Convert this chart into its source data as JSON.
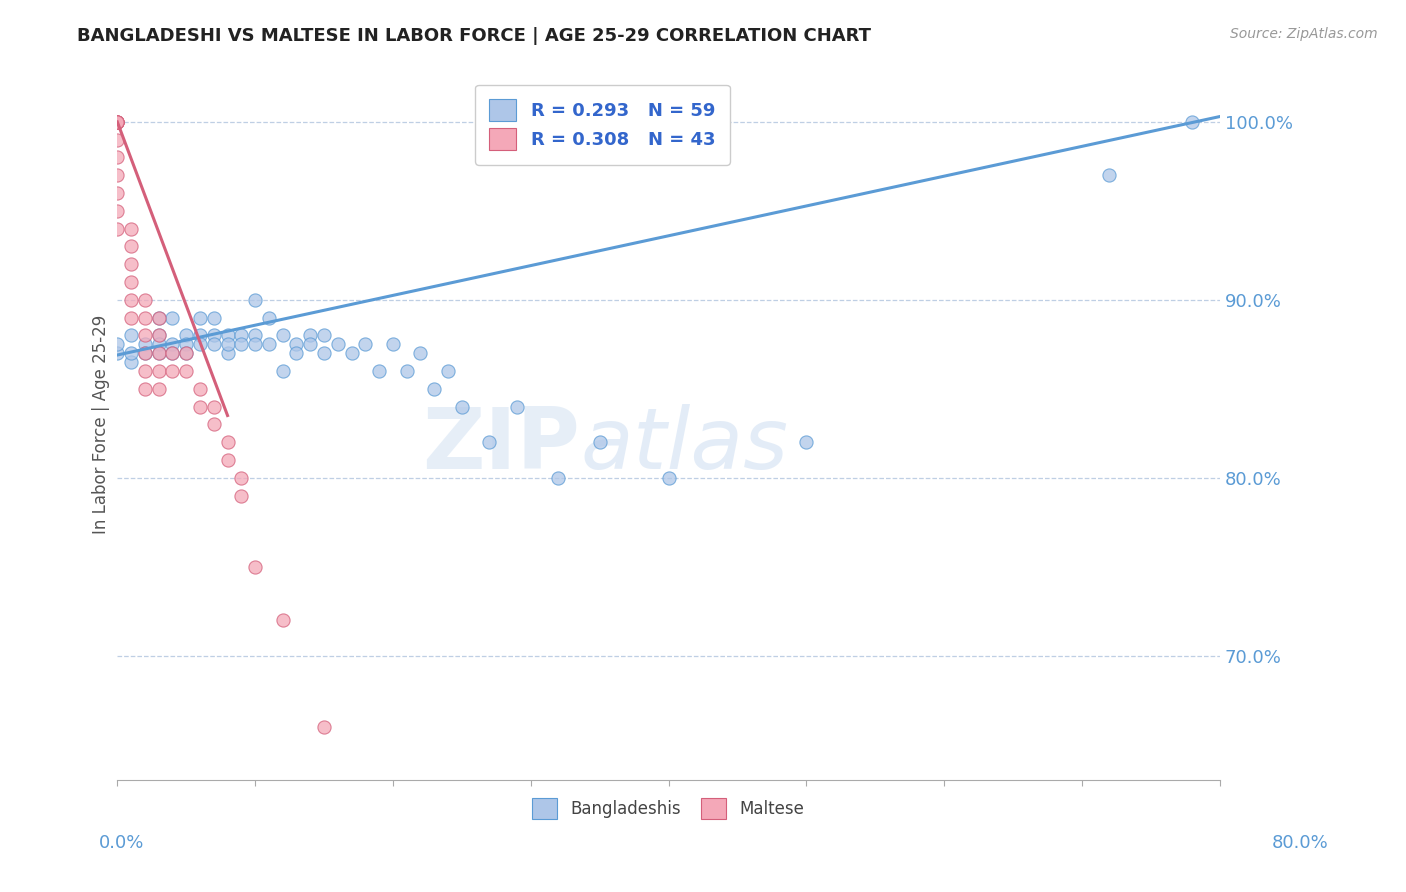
{
  "title": "BANGLADESHI VS MALTESE IN LABOR FORCE | AGE 25-29 CORRELATION CHART",
  "source": "Source: ZipAtlas.com",
  "ylabel_label": "In Labor Force | Age 25-29",
  "xlim": [
    0.0,
    0.8
  ],
  "ylim": [
    0.63,
    1.03
  ],
  "R_bangladeshi": 0.293,
  "N_bangladeshi": 59,
  "R_maltese": 0.308,
  "N_maltese": 43,
  "color_bangladeshi": "#aec6e8",
  "color_maltese": "#f4a8b8",
  "trendline_bangladeshi_color": "#5b9bd5",
  "trendline_maltese_color": "#d45f7a",
  "watermark_zip": "ZIP",
  "watermark_atlas": "atlas",
  "background_color": "#ffffff",
  "bangladeshi_x": [
    0.0,
    0.0,
    0.01,
    0.01,
    0.01,
    0.02,
    0.02,
    0.03,
    0.03,
    0.03,
    0.03,
    0.04,
    0.04,
    0.04,
    0.05,
    0.05,
    0.05,
    0.06,
    0.06,
    0.06,
    0.07,
    0.07,
    0.07,
    0.08,
    0.08,
    0.08,
    0.09,
    0.09,
    0.1,
    0.1,
    0.1,
    0.11,
    0.11,
    0.12,
    0.12,
    0.13,
    0.13,
    0.14,
    0.14,
    0.15,
    0.15,
    0.16,
    0.17,
    0.18,
    0.19,
    0.2,
    0.21,
    0.22,
    0.23,
    0.24,
    0.25,
    0.27,
    0.29,
    0.32,
    0.35,
    0.4,
    0.5,
    0.72,
    0.78
  ],
  "bangladeshi_y": [
    0.87,
    0.875,
    0.865,
    0.88,
    0.87,
    0.875,
    0.87,
    0.89,
    0.88,
    0.875,
    0.87,
    0.89,
    0.875,
    0.87,
    0.88,
    0.875,
    0.87,
    0.89,
    0.88,
    0.875,
    0.89,
    0.88,
    0.875,
    0.88,
    0.87,
    0.875,
    0.88,
    0.875,
    0.9,
    0.88,
    0.875,
    0.89,
    0.875,
    0.88,
    0.86,
    0.875,
    0.87,
    0.88,
    0.875,
    0.87,
    0.88,
    0.875,
    0.87,
    0.875,
    0.86,
    0.875,
    0.86,
    0.87,
    0.85,
    0.86,
    0.84,
    0.82,
    0.84,
    0.8,
    0.82,
    0.8,
    0.82,
    0.97,
    1.0
  ],
  "maltese_x": [
    0.0,
    0.0,
    0.0,
    0.0,
    0.0,
    0.0,
    0.0,
    0.0,
    0.0,
    0.0,
    0.0,
    0.01,
    0.01,
    0.01,
    0.01,
    0.01,
    0.01,
    0.02,
    0.02,
    0.02,
    0.02,
    0.02,
    0.02,
    0.03,
    0.03,
    0.03,
    0.03,
    0.03,
    0.04,
    0.04,
    0.05,
    0.05,
    0.06,
    0.06,
    0.07,
    0.07,
    0.08,
    0.08,
    0.09,
    0.09,
    0.1,
    0.12,
    0.15
  ],
  "maltese_y": [
    1.0,
    1.0,
    1.0,
    1.0,
    1.0,
    0.99,
    0.98,
    0.97,
    0.96,
    0.95,
    0.94,
    0.94,
    0.93,
    0.92,
    0.91,
    0.9,
    0.89,
    0.9,
    0.89,
    0.88,
    0.87,
    0.86,
    0.85,
    0.89,
    0.88,
    0.87,
    0.86,
    0.85,
    0.87,
    0.86,
    0.87,
    0.86,
    0.85,
    0.84,
    0.84,
    0.83,
    0.82,
    0.81,
    0.8,
    0.79,
    0.75,
    0.72,
    0.66
  ],
  "trendline_b_x0": 0.0,
  "trendline_b_x1": 0.8,
  "trendline_b_y0": 0.869,
  "trendline_b_y1": 1.003,
  "trendline_m_x0": 0.0,
  "trendline_m_x1": 0.08,
  "trendline_m_y0": 1.0,
  "trendline_m_y1": 0.835
}
